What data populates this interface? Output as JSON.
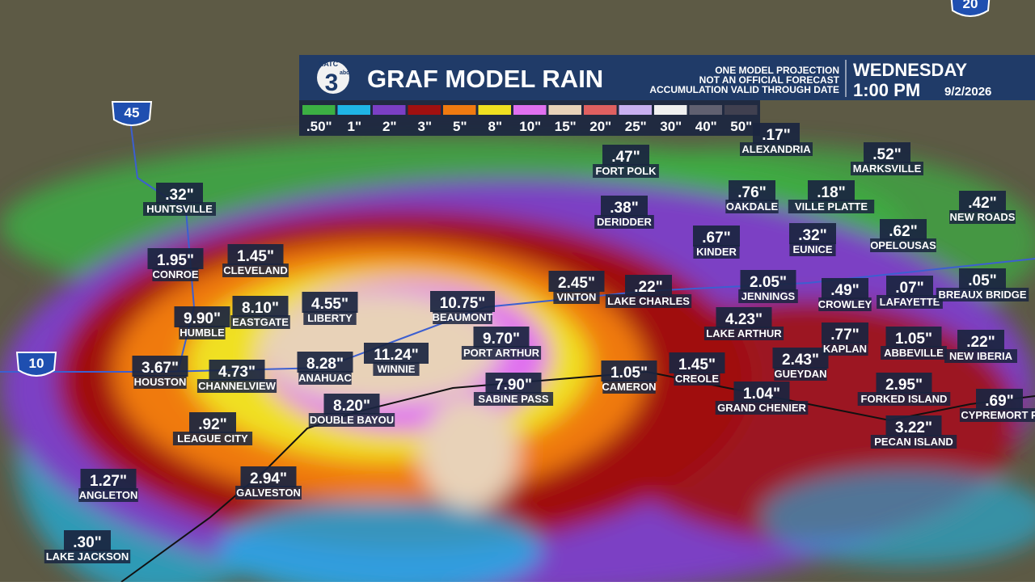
{
  "header": {
    "logo": "KATC",
    "logo_number": "3",
    "logo_sub": "abc",
    "title": "GRAF MODEL RAIN",
    "disclaimer": [
      "ONE MODEL PROJECTION",
      "NOT AN OFFICIAL FORECAST",
      "ACCUMULATION VALID THROUGH DATE"
    ],
    "day": "WEDNESDAY",
    "time": "1:00 PM",
    "date": "9/2/2026"
  },
  "legend": [
    {
      "label": ".50\"",
      "color": "#3cb043"
    },
    {
      "label": "1\"",
      "color": "#1fb5e6"
    },
    {
      "label": "2\"",
      "color": "#7b3fc4"
    },
    {
      "label": "3\"",
      "color": "#a01010"
    },
    {
      "label": "5\"",
      "color": "#f07a10"
    },
    {
      "label": "8\"",
      "color": "#f0e020"
    },
    {
      "label": "10\"",
      "color": "#e070f0"
    },
    {
      "label": "15\"",
      "color": "#e8d2b8"
    },
    {
      "label": "20\"",
      "color": "#e06060"
    },
    {
      "label": "25\"",
      "color": "#c8b0f0"
    },
    {
      "label": "30\"",
      "color": "#f0f0f0"
    },
    {
      "label": "40\"",
      "color": "#606070"
    },
    {
      "label": "50\"",
      "color": "#404050"
    }
  ],
  "highways": [
    "45",
    "10",
    "20"
  ],
  "cities": [
    {
      "name": "HUNTSVILLE",
      "value": ".32\""
    },
    {
      "name": "CONROE",
      "value": "1.95\""
    },
    {
      "name": "CLEVELAND",
      "value": "1.45\""
    },
    {
      "name": "EASTGATE",
      "value": "8.10\""
    },
    {
      "name": "LIBERTY",
      "value": "4.55\""
    },
    {
      "name": "HUMBLE",
      "value": "9.90\""
    },
    {
      "name": "HOUSTON",
      "value": "3.67\""
    },
    {
      "name": "CHANNELVIEW",
      "value": "4.73\""
    },
    {
      "name": "ANAHUAC",
      "value": "8.28\""
    },
    {
      "name": "WINNIE",
      "value": "11.24\""
    },
    {
      "name": "BEAUMONT",
      "value": "10.75\""
    },
    {
      "name": "PORT ARTHUR",
      "value": "9.70\""
    },
    {
      "name": "SABINE PASS",
      "value": "7.90\""
    },
    {
      "name": "DOUBLE BAYOU",
      "value": "8.20\""
    },
    {
      "name": "LEAGUE CITY",
      "value": ".92\""
    },
    {
      "name": "GALVESTON",
      "value": "2.94\""
    },
    {
      "name": "ANGLETON",
      "value": "1.27\""
    },
    {
      "name": "LAKE JACKSON",
      "value": ".30\""
    },
    {
      "name": "VINTON",
      "value": "2.45\""
    },
    {
      "name": "LAKE CHARLES",
      "value": ".22\""
    },
    {
      "name": "CAMERON",
      "value": "1.05\""
    },
    {
      "name": "CREOLE",
      "value": "1.45\""
    },
    {
      "name": "FORT POLK",
      "value": ".47\""
    },
    {
      "name": "DERIDDER",
      "value": ".38\""
    },
    {
      "name": "KINDER",
      "value": ".67\""
    },
    {
      "name": "OAKDALE",
      "value": ".76\""
    },
    {
      "name": "ALEXANDRIA",
      "value": ".17\""
    },
    {
      "name": "VILLE PLATTE",
      "value": ".18\""
    },
    {
      "name": "EUNICE",
      "value": ".32\""
    },
    {
      "name": "JENNINGS",
      "value": "2.05\""
    },
    {
      "name": "LAKE ARTHUR",
      "value": "4.23\""
    },
    {
      "name": "GRAND CHENIER",
      "value": "1.04\""
    },
    {
      "name": "GUEYDAN",
      "value": "2.43\""
    },
    {
      "name": "KAPLAN",
      "value": ".77\""
    },
    {
      "name": "CROWLEY",
      "value": ".49\""
    },
    {
      "name": "LAFAYETTE",
      "value": ".07\""
    },
    {
      "name": "MARKSVILLE",
      "value": ".52\""
    },
    {
      "name": "OPELOUSAS",
      "value": ".62\""
    },
    {
      "name": "NEW ROADS",
      "value": ".42\""
    },
    {
      "name": "BREAUX BRIDGE",
      "value": ".05\""
    },
    {
      "name": "ABBEVILLE",
      "value": "1.05\""
    },
    {
      "name": "NEW IBERIA",
      "value": ".22\""
    },
    {
      "name": "FORKED ISLAND",
      "value": "2.95\""
    },
    {
      "name": "CYPREMORT P",
      "value": ".69\""
    },
    {
      "name": "PECAN ISLAND",
      "value": "3.22\""
    }
  ]
}
